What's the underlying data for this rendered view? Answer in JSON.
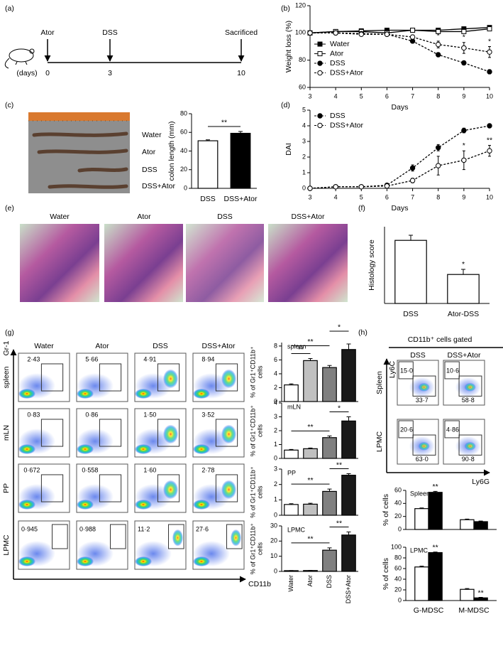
{
  "panel_labels": [
    "(a)",
    "(b)",
    "(c)",
    "(d)",
    "(e)",
    "(f)",
    "(g)",
    "(h)"
  ],
  "timeline": {
    "events": [
      "Ator",
      "DSS",
      "Sacrificed"
    ],
    "unit": "(days)",
    "days": [
      "0",
      "3",
      "10"
    ]
  },
  "colon_photo": {
    "labels": [
      "Water",
      "Ator",
      "DSS",
      "DSS+Ator"
    ]
  },
  "histology": {
    "titles": [
      "Water",
      "Ator",
      "DSS",
      "DSS+Ator"
    ]
  },
  "flow_g": {
    "columns": [
      "Water",
      "Ator",
      "DSS",
      "DSS+Ator"
    ],
    "rows": [
      "spleen",
      "mLN",
      "PP",
      "LPMC"
    ],
    "y_axis": "Gr-1",
    "x_axis": "CD11b",
    "percentages": [
      [
        "2·43",
        "5·66",
        "4·91",
        "8·94"
      ],
      [
        "0·83",
        "0·86",
        "1·50",
        "3·52"
      ],
      [
        "0·672",
        "0·558",
        "1·60",
        "2·78"
      ],
      [
        "0·945",
        "0·988",
        "11·2",
        "27·6"
      ]
    ]
  },
  "flow_h": {
    "header": "CD11b⁺ cells gated",
    "columns": [
      "DSS",
      "DSS+Ator"
    ],
    "rows": [
      "Spleen",
      "LPMC"
    ],
    "y_axis": "Ly6C",
    "x_axis": "Ly6G",
    "percentages": [
      [
        [
          "15·0",
          "33·7"
        ],
        [
          "10·6",
          "58·8"
        ]
      ],
      [
        [
          "20·6",
          "63·0"
        ],
        [
          "4·86",
          "90·8"
        ]
      ]
    ]
  },
  "chart_data": [
    {
      "type": "line",
      "x": [
        3,
        4,
        5,
        6,
        7,
        8,
        9,
        10
      ],
      "xlim": [
        3,
        10
      ],
      "xticks": [
        3,
        4,
        5,
        6,
        7,
        8,
        9,
        10
      ],
      "ylim": [
        60,
        120
      ],
      "yticks": [
        60,
        80,
        100,
        120
      ],
      "xlabel": "Days",
      "ylabel": "Weight loss (%)",
      "legend": "center-left",
      "series": [
        {
          "name": "Water",
          "color": "#000000",
          "marker": "square",
          "filled": true,
          "dash": "solid",
          "values": [
            100,
            101,
            101.5,
            102,
            102,
            102,
            103,
            104
          ],
          "errors": [
            0,
            0.5,
            0.5,
            0.5,
            0.5,
            0.5,
            0.5,
            1
          ]
        },
        {
          "name": "Ator",
          "color": "#000000",
          "marker": "square",
          "filled": false,
          "dash": "solid",
          "values": [
            100,
            101,
            101,
            100,
            102,
            101,
            101,
            103
          ],
          "errors": [
            0,
            0.5,
            0.5,
            0.5,
            0.5,
            0.5,
            0.5,
            1
          ]
        },
        {
          "name": "DSS",
          "color": "#000000",
          "marker": "circle",
          "filled": true,
          "dash": "dashed",
          "values": [
            100,
            100,
            99.5,
            99,
            94,
            84,
            78,
            71.5
          ],
          "errors": [
            0,
            0.5,
            0.5,
            0.5,
            1,
            1.5,
            1.5,
            1.5
          ]
        },
        {
          "name": "DSS+Ator",
          "color": "#000000",
          "marker": "circle",
          "filled": false,
          "dash": "dashed",
          "values": [
            100,
            100,
            99,
            99,
            97,
            91.5,
            89,
            86
          ],
          "errors": [
            0,
            0.5,
            0.5,
            0.5,
            1.5,
            2.5,
            4,
            4
          ]
        }
      ],
      "annotations": [
        {
          "x": 8,
          "text": "*"
        },
        {
          "x": 9,
          "text": "*"
        },
        {
          "x": 10,
          "text": "*"
        }
      ]
    },
    {
      "type": "bar",
      "categories": [
        "DSS",
        "DSS+Ator"
      ],
      "values": [
        51,
        59
      ],
      "errors": [
        1,
        2
      ],
      "colors": [
        "#ffffff",
        "#000000"
      ],
      "ylim": [
        0,
        80
      ],
      "yticks": [
        0,
        20,
        40,
        60,
        80
      ],
      "ylabel": "colon length (mm)",
      "brackets": [
        {
          "span": [
            0,
            1
          ],
          "text": "**"
        }
      ]
    },
    {
      "type": "line",
      "x": [
        3,
        4,
        5,
        6,
        7,
        8,
        9,
        10
      ],
      "xlim": [
        3,
        10
      ],
      "xticks": [
        3,
        4,
        5,
        6,
        7,
        8,
        9,
        10
      ],
      "ylim": [
        0,
        5
      ],
      "yticks": [
        0,
        1,
        2,
        3,
        4,
        5
      ],
      "xlabel": "Days",
      "ylabel": "DAI",
      "legend": "upper-left",
      "series": [
        {
          "name": "DSS",
          "color": "#000000",
          "marker": "circle",
          "filled": true,
          "dash": "dashed",
          "values": [
            0,
            0.1,
            0.1,
            0.2,
            1.3,
            2.6,
            3.7,
            4.0
          ],
          "errors": [
            0,
            0,
            0,
            0.05,
            0.2,
            0.2,
            0.15,
            0
          ]
        },
        {
          "name": "DSS+Ator",
          "color": "#000000",
          "marker": "circle",
          "filled": false,
          "dash": "dashed",
          "values": [
            0,
            0.1,
            0.1,
            0.15,
            0.5,
            1.45,
            1.8,
            2.4
          ],
          "errors": [
            0,
            0,
            0,
            0.05,
            0.15,
            0.6,
            0.6,
            0.35
          ]
        }
      ],
      "annotations": [
        {
          "x": 9,
          "text": "*"
        },
        {
          "x": 10,
          "text": "**"
        }
      ]
    },
    {
      "type": "bar",
      "categories": [
        "DSS",
        "Ator-DSS"
      ],
      "values": [
        3.7,
        1.7
      ],
      "errors": [
        0.3,
        0.3
      ],
      "colors": [
        "#ffffff",
        "#ffffff"
      ],
      "ylim": [
        0,
        4.5
      ],
      "ylabel": "Histology score",
      "brackets": [],
      "stars": [
        {
          "category": 1,
          "text": "*"
        }
      ]
    },
    {
      "type": "bar",
      "title": "spleen",
      "values": [
        2.4,
        5.9,
        4.9,
        7.5
      ],
      "errors": [
        0.15,
        0.3,
        0.3,
        0.8
      ],
      "colors": [
        "#ffffff",
        "#c0c0c0",
        "#808080",
        "#1a1a1a"
      ],
      "ylim": [
        0,
        8.5
      ],
      "yticks": [
        0,
        2,
        4,
        6,
        8
      ],
      "ylabel": [
        "% of Gr1⁺CD11b⁺",
        "cells"
      ],
      "brackets": [
        {
          "span": [
            0,
            1
          ],
          "text": "**"
        },
        {
          "span": [
            0,
            2
          ],
          "text": "**"
        },
        {
          "span": [
            2,
            3
          ],
          "text": "*"
        }
      ]
    },
    {
      "type": "bar",
      "title": "mLN",
      "values": [
        0.6,
        0.7,
        1.5,
        2.7
      ],
      "errors": [
        0.05,
        0.05,
        0.12,
        0.3
      ],
      "colors": [
        "#ffffff",
        "#c0c0c0",
        "#808080",
        "#1a1a1a"
      ],
      "ylim": [
        0,
        4
      ],
      "yticks": [
        0,
        1,
        2,
        3,
        4
      ],
      "ylabel": [
        "% of Gr1⁺CD11b⁺",
        "cells"
      ],
      "brackets": [
        {
          "span": [
            0,
            2
          ],
          "text": "**"
        },
        {
          "span": [
            2,
            3
          ],
          "text": "*"
        }
      ]
    },
    {
      "type": "bar",
      "title": "PP",
      "values": [
        0.7,
        0.72,
        1.55,
        2.6
      ],
      "errors": [
        0.05,
        0.06,
        0.15,
        0.1
      ],
      "colors": [
        "#ffffff",
        "#c0c0c0",
        "#808080",
        "#1a1a1a"
      ],
      "ylim": [
        0,
        3
      ],
      "yticks": [
        0,
        1,
        2,
        3
      ],
      "ylabel": [
        "% of Gr1⁺CD11b⁺",
        "cells"
      ],
      "brackets": [
        {
          "span": [
            0,
            2
          ],
          "text": "**"
        },
        {
          "span": [
            2,
            3
          ],
          "text": "**"
        }
      ]
    },
    {
      "type": "bar",
      "title": "LPMC",
      "categories": [
        "Water",
        "Ator",
        "DSS",
        "DSS+Ator"
      ],
      "values": [
        0.5,
        0.6,
        14,
        24
      ],
      "errors": [
        0.1,
        0.1,
        1.5,
        2
      ],
      "colors": [
        "#ffffff",
        "#c0c0c0",
        "#808080",
        "#1a1a1a"
      ],
      "ylim": [
        0,
        30
      ],
      "yticks": [
        0,
        10,
        20,
        30
      ],
      "ylabel": [
        "% of Gr1⁺CD11b⁺",
        "cells"
      ],
      "brackets": [
        {
          "span": [
            0,
            2
          ],
          "text": "**"
        },
        {
          "span": [
            2,
            3
          ],
          "text": "**"
        }
      ]
    },
    {
      "type": "grouped-bar",
      "title": "Spleen",
      "series": [
        {
          "color": "#ffffff",
          "values": [
            32,
            15
          ],
          "errors": [
            1,
            1
          ]
        },
        {
          "color": "#000000",
          "values": [
            57,
            12
          ],
          "errors": [
            1.5,
            1
          ]
        }
      ],
      "ylim": [
        0,
        60
      ],
      "yticks": [
        0,
        20,
        40,
        60
      ],
      "ylabel": "% of cells",
      "annotations": [
        {
          "series": 1,
          "category": 0,
          "text": "**"
        }
      ]
    },
    {
      "type": "grouped-bar",
      "title": "LPMC",
      "categories": [
        "G-MDSC",
        "M-MDSC"
      ],
      "series": [
        {
          "color": "#ffffff",
          "values": [
            63,
            21
          ],
          "errors": [
            1.5,
            1.5
          ]
        },
        {
          "color": "#000000",
          "values": [
            90,
            5
          ],
          "errors": [
            1,
            1
          ]
        }
      ],
      "ylim": [
        0,
        100
      ],
      "yticks": [
        0,
        20,
        40,
        60,
        80,
        100
      ],
      "ylabel": "% of cells",
      "annotations": [
        {
          "series": 1,
          "category": 0,
          "text": "**"
        },
        {
          "series": 1,
          "category": 1,
          "text": "**"
        }
      ]
    }
  ]
}
